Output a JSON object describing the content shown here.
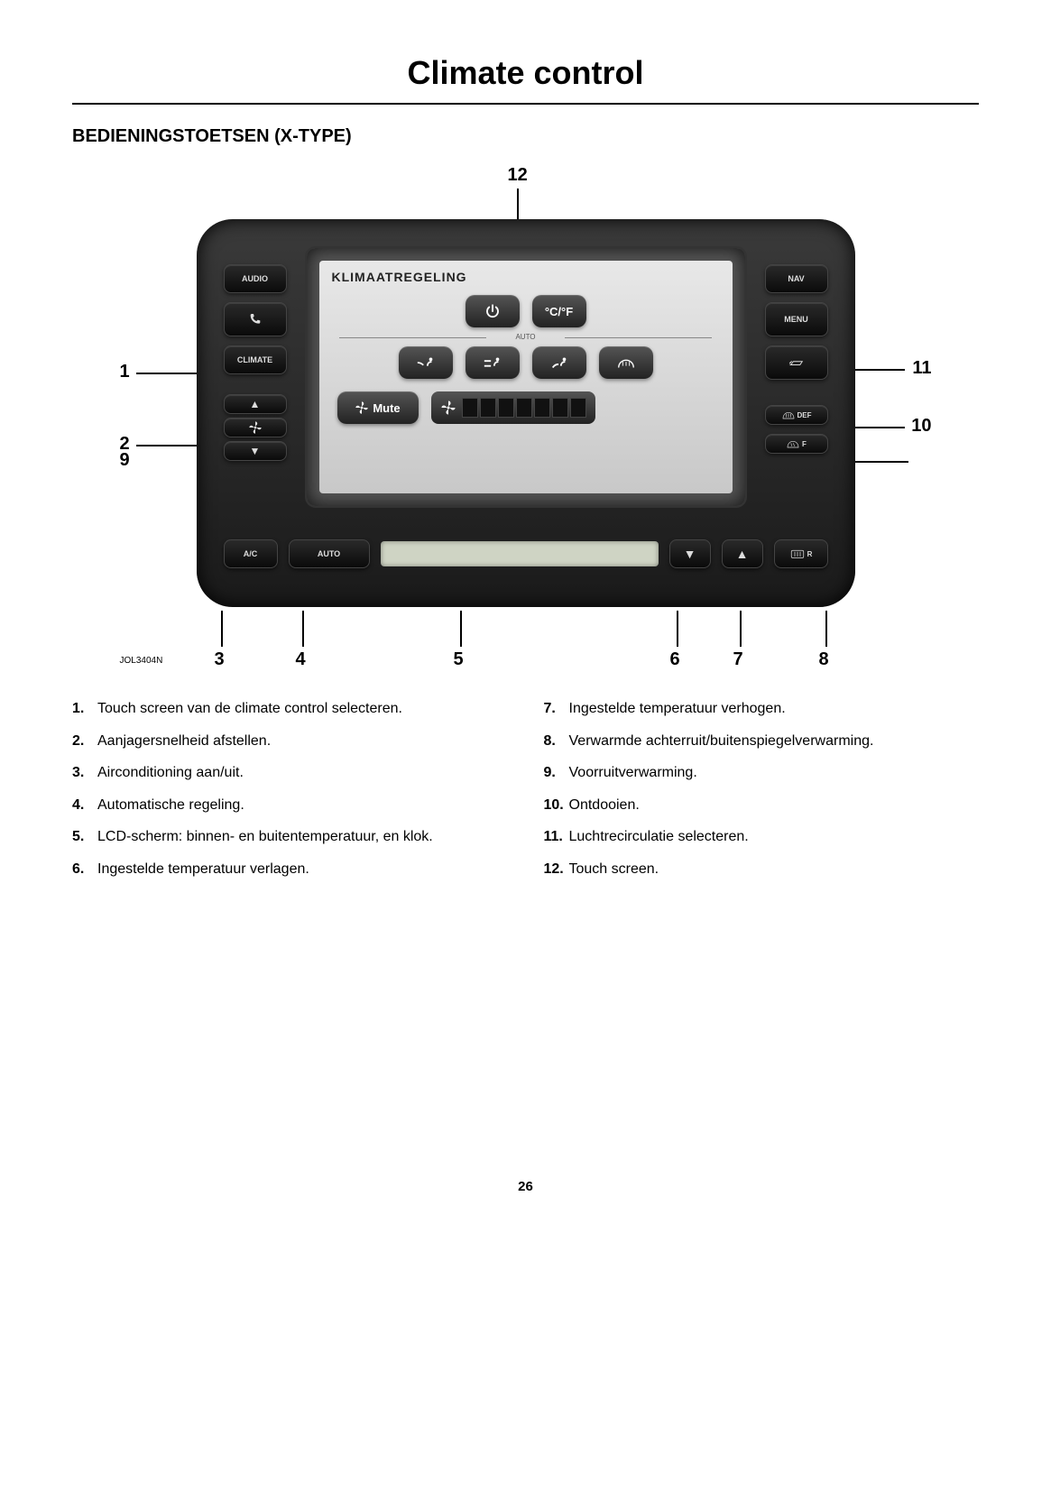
{
  "page_title": "Climate control",
  "section_title": "BEDIENINGSTOETSEN (X-TYPE)",
  "ref_code": "JOL3404N",
  "page_number": "26",
  "callouts": {
    "c1": "1",
    "c2": "2",
    "c3": "3",
    "c4": "4",
    "c5": "5",
    "c6": "6",
    "c7": "7",
    "c8": "8",
    "c9": "9",
    "c10": "10",
    "c11": "11",
    "c12": "12"
  },
  "device": {
    "left_buttons": {
      "audio": "AUDIO",
      "climate": "CLIMATE",
      "ac": "A/C"
    },
    "right_buttons": {
      "nav": "NAV",
      "menu": "MENU",
      "def": "DEF",
      "f": "F",
      "r": "R"
    },
    "bottom": {
      "auto": "AUTO"
    },
    "screen": {
      "title": "KLIMAATREGELING",
      "cf": "°C/°F",
      "mute": "Mute",
      "auto_label": "AUTO"
    }
  },
  "descriptions": {
    "left": [
      {
        "n": "1.",
        "t": "Touch screen van de climate control selecteren."
      },
      {
        "n": "2.",
        "t": "Aanjagersnelheid afstellen."
      },
      {
        "n": "3.",
        "t": "Airconditioning aan/uit."
      },
      {
        "n": "4.",
        "t": "Automatische regeling."
      },
      {
        "n": "5.",
        "t": "LCD-scherm: binnen- en buitentemperatuur, en klok."
      },
      {
        "n": "6.",
        "t": "Ingestelde temperatuur verlagen."
      }
    ],
    "right": [
      {
        "n": "7.",
        "t": "Ingestelde temperatuur verhogen."
      },
      {
        "n": "8.",
        "t": "Verwarmde achterruit/buitenspiegelverwarming."
      },
      {
        "n": "9.",
        "t": "Voorruitverwarming."
      },
      {
        "n": "10.",
        "t": "Ontdooien."
      },
      {
        "n": "11.",
        "t": "Luchtrecirculatie selecteren."
      },
      {
        "n": "12.",
        "t": "Touch screen."
      }
    ]
  }
}
